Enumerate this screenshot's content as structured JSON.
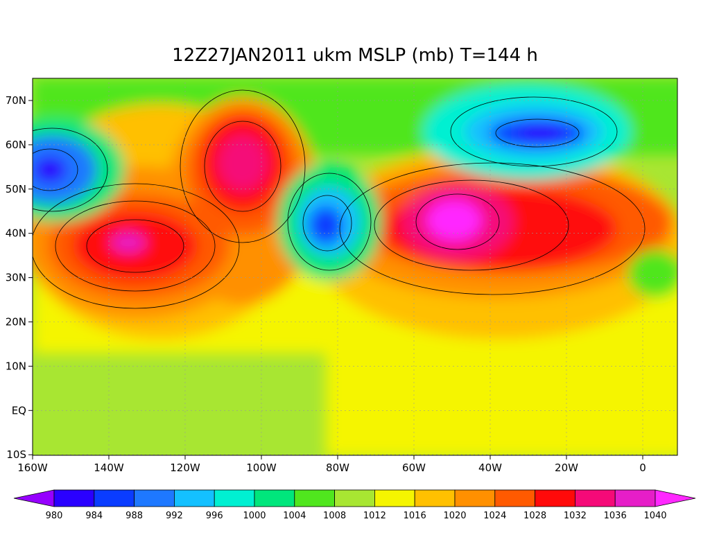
{
  "title": "12Z27JAN2011 ukm MSLP (mb) T=144 h",
  "map": {
    "lon_ticks": [
      "160W",
      "140W",
      "120W",
      "100W",
      "80W",
      "60W",
      "40W",
      "20W",
      "0"
    ],
    "lat_ticks": [
      "70N",
      "60N",
      "50N",
      "40N",
      "30N",
      "20N",
      "10N",
      "EQ",
      "10S"
    ]
  },
  "colorbar": {
    "levels": [
      "980",
      "984",
      "988",
      "992",
      "996",
      "1000",
      "1004",
      "1008",
      "1012",
      "1016",
      "1020",
      "1024",
      "1028",
      "1032",
      "1036",
      "1040"
    ],
    "colors": [
      "#9600ff",
      "#2a00ff",
      "#0a3cff",
      "#1e78ff",
      "#14c0ff",
      "#00f0d2",
      "#00e67c",
      "#50e61e",
      "#a8e632",
      "#f5f500",
      "#ffc000",
      "#ff9000",
      "#ff5a00",
      "#ff0a0a",
      "#f50a78",
      "#e61ec8",
      "#ff28ff"
    ]
  }
}
